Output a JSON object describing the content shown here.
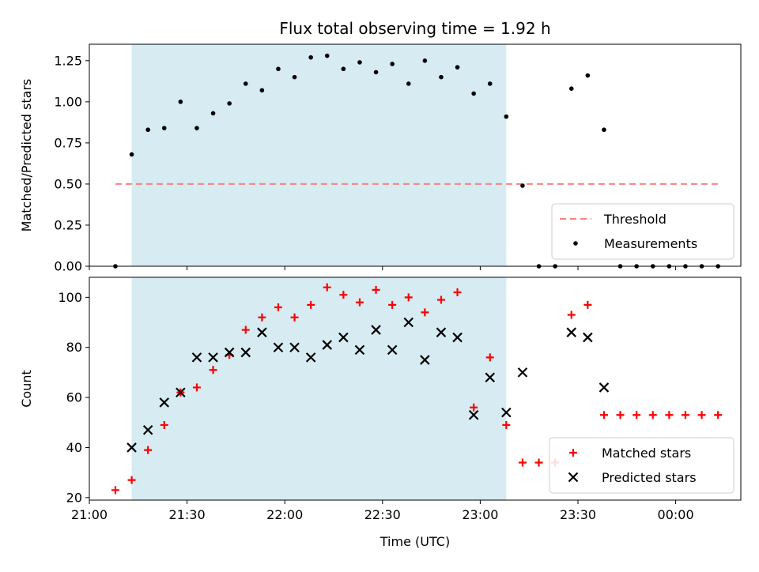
{
  "chart_data": {
    "title": "Flux total observing time = 1.92 h",
    "xlabel": "Time (UTC)",
    "x_type": "time",
    "xlim": [
      "21:00",
      "00:20"
    ],
    "x_ticks": [
      "21:00",
      "21:30",
      "22:00",
      "22:30",
      "23:00",
      "23:30",
      "00:00"
    ],
    "shaded_interval": {
      "start": "21:13",
      "end": "23:08",
      "color": "#add8e6"
    },
    "colors": {
      "threshold": "#ff7f7f",
      "measurements": "#000000",
      "matched": "#ff0000",
      "predicted": "#000000",
      "shade": "#add8e6"
    },
    "times": [
      "21:08",
      "21:13",
      "21:18",
      "21:23",
      "21:28",
      "21:33",
      "21:38",
      "21:43",
      "21:48",
      "21:53",
      "21:58",
      "22:03",
      "22:08",
      "22:13",
      "22:18",
      "22:23",
      "22:28",
      "22:33",
      "22:38",
      "22:43",
      "22:48",
      "22:53",
      "22:58",
      "23:03",
      "23:08",
      "23:13",
      "23:18",
      "23:23",
      "23:28",
      "23:33",
      "23:38",
      "23:43",
      "23:48",
      "23:53",
      "23:58",
      "00:03",
      "00:08",
      "00:13"
    ],
    "panels": [
      {
        "type": "scatter",
        "ylabel": "Matched/Predicted stars",
        "ylim": [
          0,
          1.35
        ],
        "y_ticks": [
          "0.00",
          "0.25",
          "0.50",
          "0.75",
          "1.00",
          "1.25"
        ],
        "grid": false,
        "legend_position": "lower-right",
        "series": [
          {
            "name": "Threshold",
            "kind": "dashed-line",
            "x": [
              "21:08",
              "00:13"
            ],
            "values": [
              0.5,
              0.5
            ]
          },
          {
            "name": "Measurements",
            "kind": "dot",
            "values": [
              0.0,
              0.68,
              0.83,
              0.84,
              1.0,
              0.84,
              0.93,
              0.99,
              1.11,
              1.07,
              1.2,
              1.15,
              1.27,
              1.28,
              1.2,
              1.24,
              1.18,
              1.23,
              1.11,
              1.25,
              1.15,
              1.21,
              1.05,
              1.11,
              0.91,
              0.49,
              0.0,
              0.0,
              1.08,
              1.16,
              0.83,
              0.0,
              0.0,
              0.0,
              0.0,
              0.0,
              0.0,
              0.0
            ]
          }
        ]
      },
      {
        "type": "scatter",
        "ylabel": "Count",
        "ylim": [
          19,
          108
        ],
        "y_ticks": [
          "20",
          "40",
          "60",
          "80",
          "100"
        ],
        "grid": false,
        "legend_position": "lower-right",
        "series": [
          {
            "name": "Matched stars",
            "kind": "plus",
            "values": [
              23,
              27,
              39,
              49,
              62,
              64,
              71,
              77,
              87,
              92,
              96,
              92,
              97,
              104,
              101,
              98,
              103,
              97,
              100,
              94,
              99,
              102,
              56,
              76,
              49,
              34,
              34,
              34,
              93,
              97,
              53,
              53,
              53,
              53,
              53,
              53,
              53,
              53
            ]
          },
          {
            "name": "Predicted stars",
            "kind": "x",
            "values": [
              null,
              40,
              47,
              58,
              62,
              76,
              76,
              78,
              78,
              86,
              80,
              80,
              76,
              81,
              84,
              79,
              87,
              79,
              90,
              75,
              86,
              84,
              53,
              68,
              54,
              70,
              null,
              null,
              86,
              84,
              64,
              null,
              null,
              null,
              null,
              null,
              null,
              null
            ]
          }
        ]
      }
    ]
  }
}
